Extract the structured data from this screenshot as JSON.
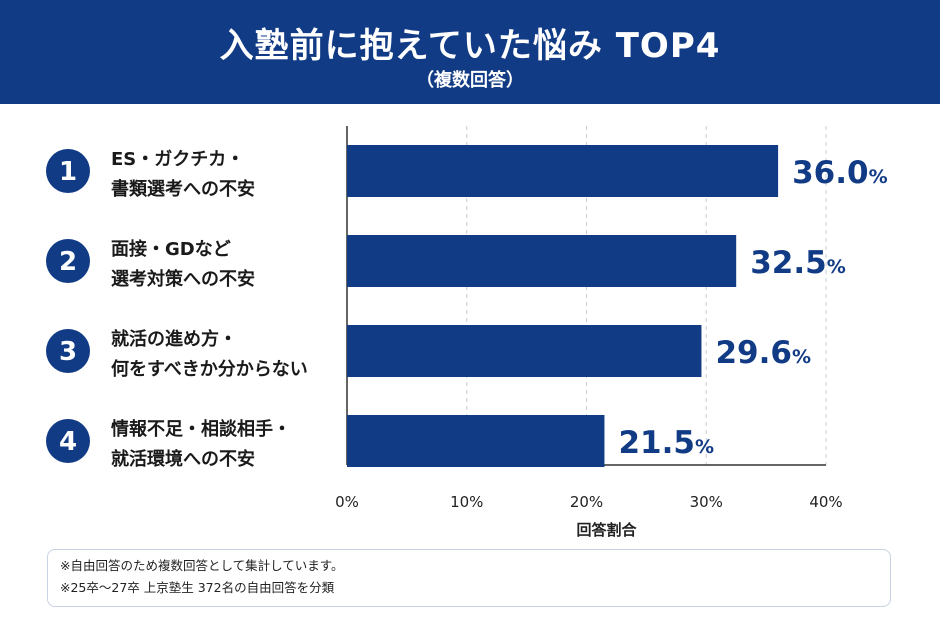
{
  "header": {
    "title": "入塾前に抱えていた悩み TOP4",
    "subtitle": "（複数回答）"
  },
  "chart_data": {
    "type": "bar",
    "orientation": "horizontal",
    "categories": [
      [
        "ES・ガクチカ・",
        "書類選考への不安"
      ],
      [
        "面接・GDなど",
        "選考対策への不安"
      ],
      [
        "就活の進め方・",
        "何をすべきか分からない"
      ],
      [
        "情報不足・相談相手・",
        "就活環境への不安"
      ]
    ],
    "ranks": [
      "1",
      "2",
      "3",
      "4"
    ],
    "values": [
      36.0,
      32.5,
      29.6,
      21.5
    ],
    "value_labels": [
      "36.0",
      "32.5",
      "29.6",
      "21.5"
    ],
    "value_unit": "%",
    "xlim": [
      0,
      40
    ],
    "xticks": [
      "0%",
      "10%",
      "20%",
      "30%",
      "40%"
    ],
    "xlabel": "回答割合",
    "grid": "vertical-dashed",
    "bar_color": "#123b86"
  },
  "notes": [
    "※自由回答のため複数回答として集計しています。",
    "※25卒〜27卒 上京塾生 372名の自由回答を分類"
  ]
}
